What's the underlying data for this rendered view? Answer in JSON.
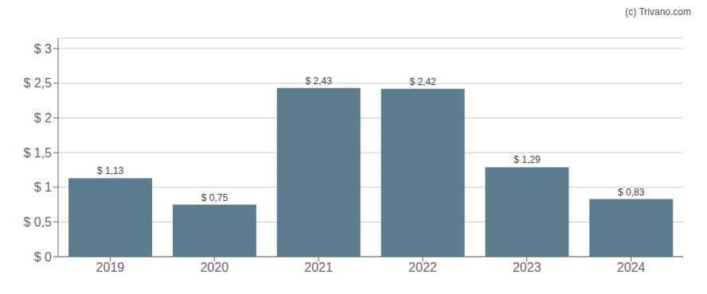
{
  "chart_data": {
    "type": "bar",
    "categories": [
      "2019",
      "2020",
      "2021",
      "2022",
      "2023",
      "2024"
    ],
    "values": [
      1.13,
      0.75,
      2.43,
      2.42,
      1.29,
      0.83
    ],
    "value_labels": [
      "$ 1,13",
      "$ 0,75",
      "$ 2,43",
      "$ 2,42",
      "$ 1,29",
      "$ 0,83"
    ],
    "data_labels": true,
    "color": "#5c7d8f",
    "ylim": [
      0,
      3.15
    ],
    "yticks": [
      {
        "value": 0,
        "label": "$ 0"
      },
      {
        "value": 0.5,
        "label": "$ 0,5"
      },
      {
        "value": 1.0,
        "label": "$ 1"
      },
      {
        "value": 1.5,
        "label": "$ 1,5"
      },
      {
        "value": 2.0,
        "label": "$ 2"
      },
      {
        "value": 2.5,
        "label": "$ 2,5"
      },
      {
        "value": 3.0,
        "label": "$ 3"
      }
    ],
    "grid": true,
    "annotations": [
      "(c) Trivano.com"
    ]
  }
}
